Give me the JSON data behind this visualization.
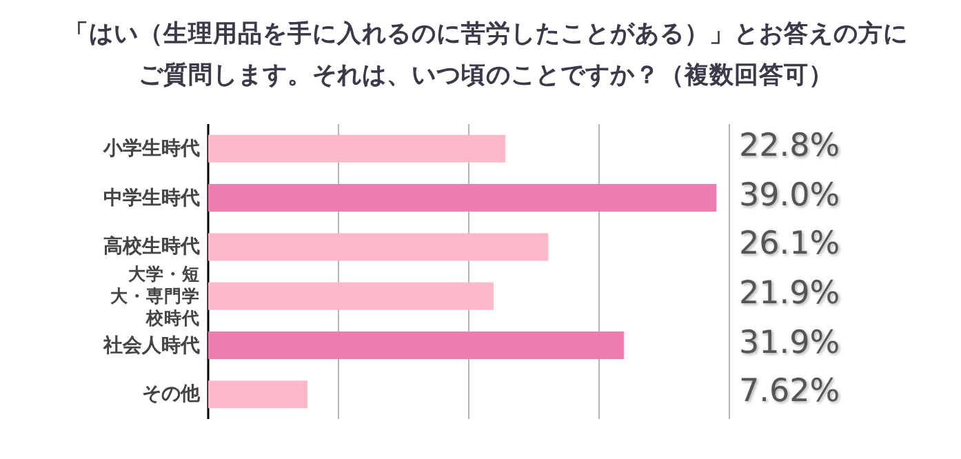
{
  "chart_data": {
    "type": "bar",
    "orientation": "horizontal",
    "title": "「はい（生理用品を手に入れるのに苦労したことがある）」とお答えの方にご質問します。それは、いつ頃のことですか？（複数回答可）",
    "categories": [
      "小学生時代",
      "中学生時代",
      "高校生時代",
      "大学・短大・専門学校時代",
      "社会人時代",
      "その他"
    ],
    "values": [
      22.8,
      39.0,
      26.1,
      21.9,
      31.9,
      7.62
    ],
    "value_labels": [
      "22.8%",
      "39.0%",
      "26.1%",
      "21.9%",
      "31.9%",
      "7.62%"
    ],
    "colors": [
      "#fdb9c9",
      "#ee7db1",
      "#fdb9c9",
      "#fdb9c9",
      "#ee7db1",
      "#fdb9c9"
    ],
    "xlim": [
      0,
      40
    ],
    "xticks": [
      {
        "value": 0,
        "label": null
      },
      {
        "value": 10,
        "label": null
      },
      {
        "value": 20,
        "label": null
      },
      {
        "value": 30,
        "label": null
      },
      {
        "value": 40,
        "label": null
      }
    ],
    "grid": "x",
    "tick_labels": "y"
  }
}
